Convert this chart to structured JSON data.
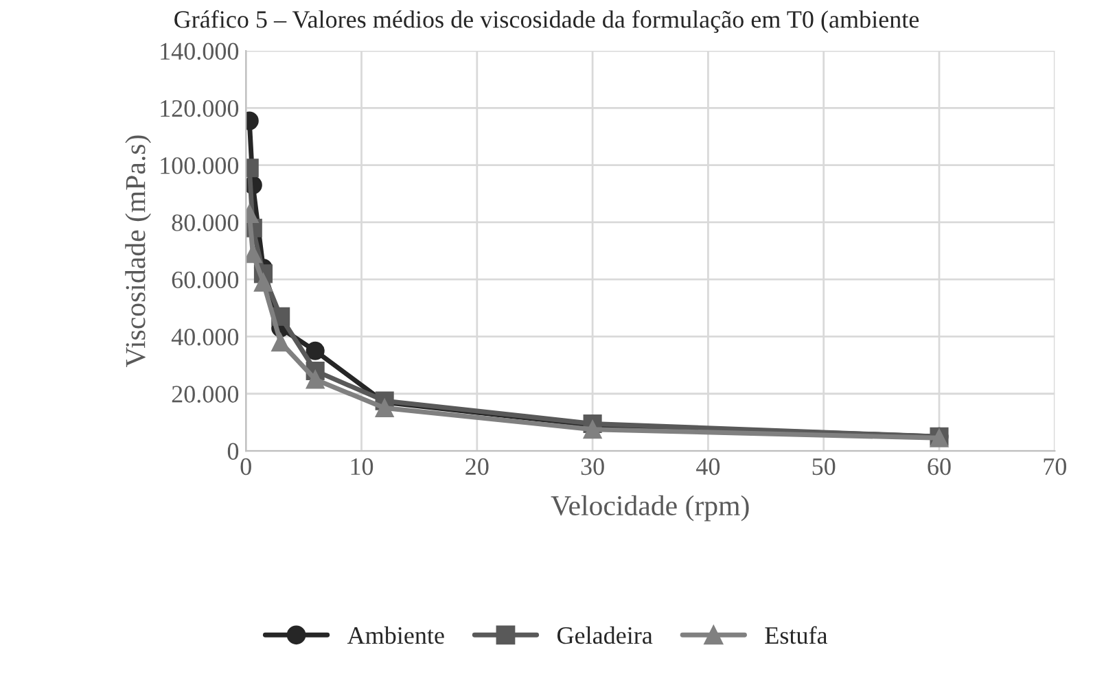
{
  "chart_data": {
    "type": "line",
    "title": "Gráfico 5 – Valores médios de viscosidade da formulação em T0 (ambiente",
    "xlabel": "Velocidade (rpm)",
    "ylabel": "Viscosidade (mPa.s)",
    "x": [
      0.3,
      0.6,
      1.5,
      3,
      6,
      12,
      30,
      60
    ],
    "series": [
      {
        "name": "Ambiente",
        "color": "#262626",
        "marker": "circle",
        "values": [
          115500,
          93000,
          64000,
          43000,
          35000,
          17000,
          9000,
          5000
        ]
      },
      {
        "name": "Geladeira",
        "color": "#595959",
        "marker": "square",
        "values": [
          99000,
          78000,
          62000,
          47000,
          28000,
          17500,
          9500,
          5000
        ]
      },
      {
        "name": "Estufa",
        "color": "#808080",
        "marker": "triangle",
        "values": [
          83000,
          69000,
          59000,
          38000,
          25000,
          15000,
          7500,
          4500
        ]
      }
    ],
    "xlim": [
      0,
      70
    ],
    "xticks": [
      0,
      10,
      20,
      30,
      40,
      50,
      60,
      70
    ],
    "ylim": [
      0,
      140000
    ],
    "yticks": [
      {
        "value": 0,
        "label": "0"
      },
      {
        "value": 20000,
        "label": "20.000"
      },
      {
        "value": 40000,
        "label": "40.000"
      },
      {
        "value": 60000,
        "label": "60.000"
      },
      {
        "value": 80000,
        "label": "80.000"
      },
      {
        "value": 100000,
        "label": "100.000"
      },
      {
        "value": 120000,
        "label": "120.000"
      },
      {
        "value": 140000,
        "label": "140.000"
      }
    ],
    "grid": true,
    "legend": "bottom",
    "line_style": "solid"
  }
}
